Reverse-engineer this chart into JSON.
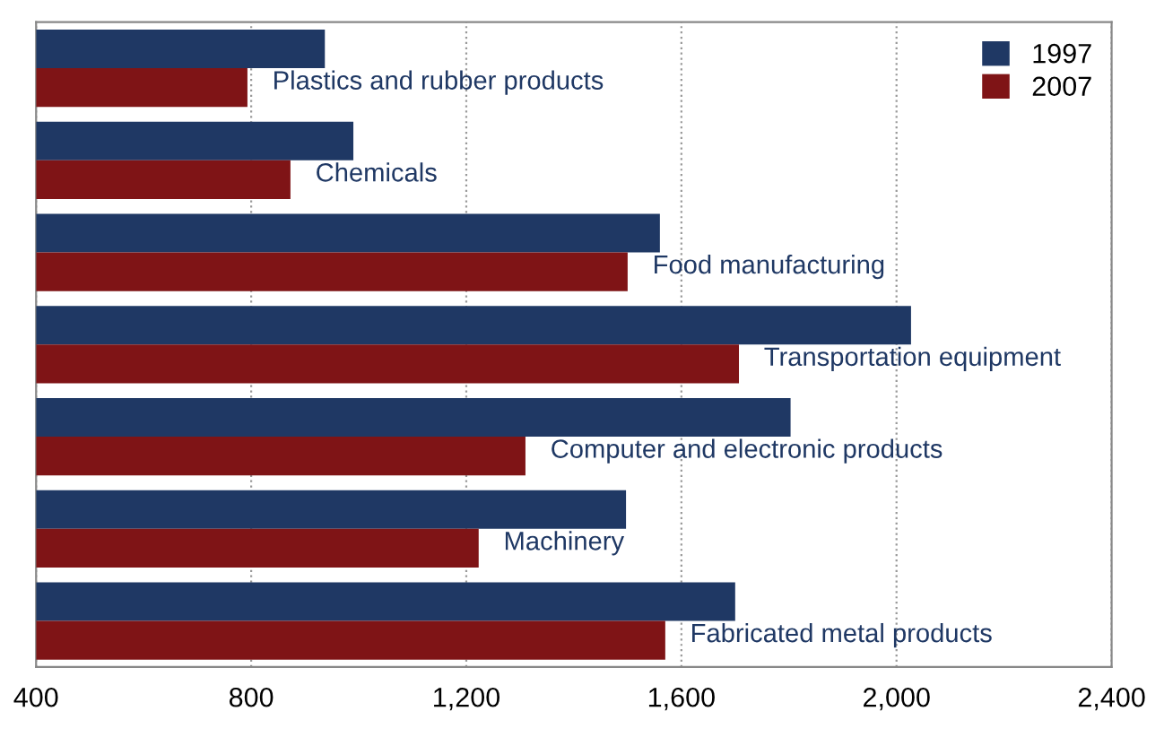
{
  "chart_data": {
    "type": "bar",
    "orientation": "horizontal",
    "tick_labels": "x",
    "categories": [
      "Plastics and rubber products",
      "Chemicals",
      "Food manufacturing",
      "Transportation equipment",
      "Computer and electronic products",
      "Machinery",
      "Fabricated metal products"
    ],
    "series": [
      {
        "name": "1997",
        "color": "#1f3864",
        "values": [
          937,
          990,
          1560,
          2027,
          1803,
          1497,
          1700
        ]
      },
      {
        "name": "2007",
        "color": "#7f1416",
        "values": [
          793,
          873,
          1500,
          1707,
          1310,
          1223,
          1570
        ]
      }
    ],
    "xlim": [
      400,
      2400
    ],
    "xticks": [
      {
        "value": 400,
        "label": "400"
      },
      {
        "value": 800,
        "label": "800"
      },
      {
        "value": 1200,
        "label": "1,200"
      },
      {
        "value": 1600,
        "label": "1,600"
      },
      {
        "value": 2000,
        "label": "2,000"
      },
      {
        "value": 2400,
        "label": "2,400"
      }
    ],
    "grid": "x",
    "legend": "top right"
  }
}
